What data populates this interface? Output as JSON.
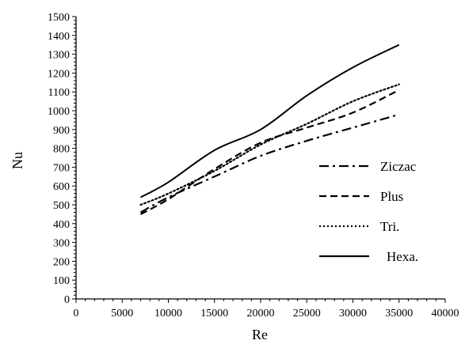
{
  "chart_data": {
    "type": "line",
    "xlabel": "Re",
    "ylabel": "Nu",
    "xlim": [
      0,
      40000
    ],
    "ylim": [
      0,
      1500
    ],
    "x_ticks": [
      0,
      5000,
      10000,
      15000,
      20000,
      25000,
      30000,
      35000,
      40000
    ],
    "y_ticks": [
      0,
      100,
      200,
      300,
      400,
      500,
      600,
      700,
      800,
      900,
      1000,
      1100,
      1200,
      1300,
      1400,
      1500
    ],
    "grid": false,
    "legend_position": "right",
    "series": [
      {
        "name": "Ziczac",
        "line_style": "dash-dot",
        "x": [
          7000,
          10000,
          15000,
          20000,
          25000,
          30000,
          35000
        ],
        "y": [
          460,
          540,
          650,
          760,
          840,
          910,
          980
        ]
      },
      {
        "name": "Plus",
        "line_style": "dashed",
        "x": [
          7000,
          10000,
          15000,
          20000,
          25000,
          30000,
          35000
        ],
        "y": [
          450,
          530,
          690,
          830,
          910,
          990,
          1110
        ]
      },
      {
        "name": "Tri.",
        "line_style": "dotted",
        "x": [
          7000,
          10000,
          15000,
          20000,
          25000,
          30000,
          35000
        ],
        "y": [
          500,
          560,
          680,
          820,
          930,
          1050,
          1140
        ]
      },
      {
        "name": "Hexa.",
        "line_style": "solid",
        "x": [
          7000,
          10000,
          15000,
          20000,
          25000,
          30000,
          35000
        ],
        "y": [
          540,
          620,
          790,
          900,
          1080,
          1230,
          1350
        ]
      }
    ],
    "colors": {
      "line": "#000000",
      "background": "#ffffff"
    }
  }
}
